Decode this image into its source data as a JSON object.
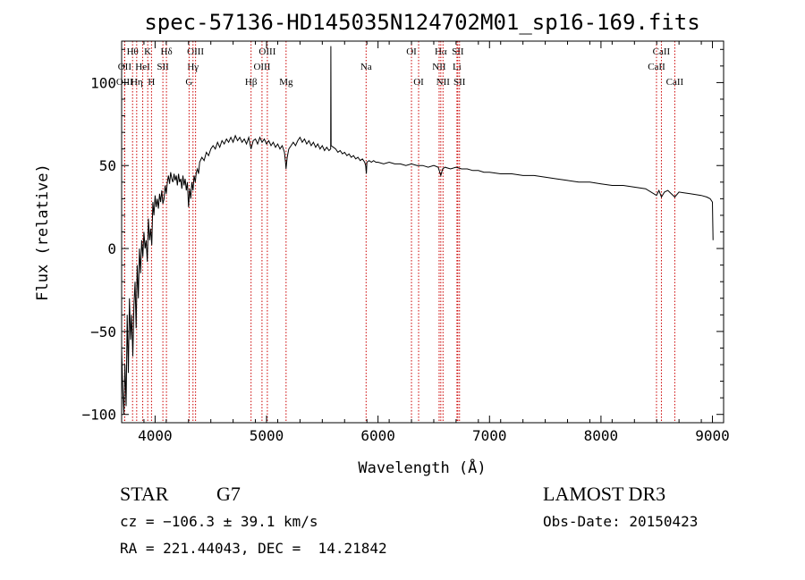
{
  "chart_data": {
    "type": "line",
    "title": "spec-57136-HD145035N124702M01_sp16-169.fits",
    "xlabel": "Wavelength (Å)",
    "ylabel": "Flux (relative)",
    "xlim": [
      3700,
      9100
    ],
    "ylim": [
      -105,
      125
    ],
    "x_ticks": [
      4000,
      5000,
      6000,
      7000,
      8000,
      9000
    ],
    "y_ticks": [
      -100,
      -50,
      0,
      50,
      100
    ],
    "grid": false,
    "series": [
      {
        "points": [
          [
            3700,
            -60
          ],
          [
            3710,
            -85
          ],
          [
            3720,
            -100
          ],
          [
            3730,
            -70
          ],
          [
            3740,
            -95
          ],
          [
            3750,
            -40
          ],
          [
            3760,
            -75
          ],
          [
            3770,
            -30
          ],
          [
            3780,
            -55
          ],
          [
            3790,
            -40
          ],
          [
            3800,
            -65
          ],
          [
            3810,
            -35
          ],
          [
            3820,
            -20
          ],
          [
            3830,
            -48
          ],
          [
            3840,
            -10
          ],
          [
            3850,
            -30
          ],
          [
            3860,
            0
          ],
          [
            3870,
            -15
          ],
          [
            3880,
            5
          ],
          [
            3890,
            -5
          ],
          [
            3900,
            10
          ],
          [
            3910,
            0
          ],
          [
            3920,
            5
          ],
          [
            3930,
            -8
          ],
          [
            3940,
            18
          ],
          [
            3950,
            5
          ],
          [
            3960,
            12
          ],
          [
            3970,
            2
          ],
          [
            3980,
            28
          ],
          [
            3990,
            20
          ],
          [
            4000,
            32
          ],
          [
            4010,
            25
          ],
          [
            4020,
            30
          ],
          [
            4030,
            24
          ],
          [
            4040,
            33
          ],
          [
            4050,
            28
          ],
          [
            4060,
            35
          ],
          [
            4070,
            27
          ],
          [
            4080,
            30
          ],
          [
            4090,
            38
          ],
          [
            4100,
            33
          ],
          [
            4110,
            40
          ],
          [
            4120,
            44
          ],
          [
            4130,
            39
          ],
          [
            4140,
            46
          ],
          [
            4150,
            42
          ],
          [
            4160,
            40
          ],
          [
            4170,
            45
          ],
          [
            4180,
            41
          ],
          [
            4190,
            44
          ],
          [
            4200,
            38
          ],
          [
            4210,
            45
          ],
          [
            4220,
            40
          ],
          [
            4230,
            42
          ],
          [
            4240,
            36
          ],
          [
            4250,
            44
          ],
          [
            4260,
            38
          ],
          [
            4270,
            42
          ],
          [
            4280,
            35
          ],
          [
            4290,
            40
          ],
          [
            4300,
            25
          ],
          [
            4310,
            36
          ],
          [
            4320,
            30
          ],
          [
            4330,
            40
          ],
          [
            4340,
            35
          ],
          [
            4350,
            44
          ],
          [
            4360,
            40
          ],
          [
            4370,
            46
          ],
          [
            4380,
            48
          ],
          [
            4390,
            45
          ],
          [
            4400,
            52
          ],
          [
            4420,
            55
          ],
          [
            4440,
            53
          ],
          [
            4460,
            58
          ],
          [
            4480,
            56
          ],
          [
            4500,
            60
          ],
          [
            4520,
            62
          ],
          [
            4540,
            60
          ],
          [
            4560,
            64
          ],
          [
            4580,
            61
          ],
          [
            4600,
            65
          ],
          [
            4620,
            63
          ],
          [
            4640,
            66
          ],
          [
            4660,
            64
          ],
          [
            4680,
            67
          ],
          [
            4700,
            64
          ],
          [
            4720,
            68
          ],
          [
            4740,
            65
          ],
          [
            4760,
            67
          ],
          [
            4780,
            64
          ],
          [
            4800,
            66
          ],
          [
            4820,
            63
          ],
          [
            4840,
            67
          ],
          [
            4860,
            60
          ],
          [
            4880,
            65
          ],
          [
            4900,
            66
          ],
          [
            4920,
            63
          ],
          [
            4940,
            67
          ],
          [
            4960,
            64
          ],
          [
            4980,
            66
          ],
          [
            5000,
            63
          ],
          [
            5020,
            65
          ],
          [
            5040,
            62
          ],
          [
            5060,
            64
          ],
          [
            5080,
            61
          ],
          [
            5100,
            63
          ],
          [
            5120,
            60
          ],
          [
            5140,
            62
          ],
          [
            5160,
            58
          ],
          [
            5170,
            52
          ],
          [
            5175,
            48
          ],
          [
            5185,
            55
          ],
          [
            5200,
            60
          ],
          [
            5220,
            62
          ],
          [
            5240,
            64
          ],
          [
            5260,
            62
          ],
          [
            5280,
            65
          ],
          [
            5300,
            67
          ],
          [
            5320,
            64
          ],
          [
            5340,
            66
          ],
          [
            5360,
            63
          ],
          [
            5380,
            65
          ],
          [
            5400,
            62
          ],
          [
            5420,
            64
          ],
          [
            5440,
            61
          ],
          [
            5460,
            63
          ],
          [
            5480,
            60
          ],
          [
            5500,
            62
          ],
          [
            5520,
            59
          ],
          [
            5540,
            61
          ],
          [
            5560,
            59
          ],
          [
            5575,
            60
          ],
          [
            5577,
            122
          ],
          [
            5579,
            62
          ],
          [
            5600,
            61
          ],
          [
            5620,
            60
          ],
          [
            5640,
            58
          ],
          [
            5660,
            59
          ],
          [
            5680,
            57
          ],
          [
            5700,
            58
          ],
          [
            5720,
            56
          ],
          [
            5740,
            57
          ],
          [
            5760,
            55
          ],
          [
            5780,
            56
          ],
          [
            5800,
            54
          ],
          [
            5820,
            55
          ],
          [
            5840,
            53
          ],
          [
            5860,
            54
          ],
          [
            5880,
            52
          ],
          [
            5889,
            50
          ],
          [
            5895,
            45
          ],
          [
            5900,
            52
          ],
          [
            5920,
            53
          ],
          [
            5940,
            52
          ],
          [
            5960,
            53
          ],
          [
            5980,
            52
          ],
          [
            6000,
            52
          ],
          [
            6050,
            51
          ],
          [
            6100,
            52
          ],
          [
            6150,
            51
          ],
          [
            6200,
            51
          ],
          [
            6250,
            50
          ],
          [
            6300,
            51
          ],
          [
            6350,
            50
          ],
          [
            6400,
            50
          ],
          [
            6450,
            49
          ],
          [
            6500,
            50
          ],
          [
            6540,
            49
          ],
          [
            6563,
            44
          ],
          [
            6580,
            48
          ],
          [
            6600,
            49
          ],
          [
            6650,
            48
          ],
          [
            6700,
            49
          ],
          [
            6750,
            48
          ],
          [
            6800,
            48
          ],
          [
            6850,
            47
          ],
          [
            6900,
            47
          ],
          [
            6950,
            46
          ],
          [
            7000,
            46
          ],
          [
            7100,
            45
          ],
          [
            7200,
            45
          ],
          [
            7300,
            44
          ],
          [
            7400,
            44
          ],
          [
            7500,
            43
          ],
          [
            7600,
            42
          ],
          [
            7700,
            41
          ],
          [
            7800,
            40
          ],
          [
            7900,
            40
          ],
          [
            8000,
            39
          ],
          [
            8100,
            38
          ],
          [
            8200,
            38
          ],
          [
            8300,
            37
          ],
          [
            8400,
            36
          ],
          [
            8498,
            32
          ],
          [
            8520,
            35
          ],
          [
            8542,
            31
          ],
          [
            8570,
            34
          ],
          [
            8600,
            35
          ],
          [
            8662,
            31
          ],
          [
            8700,
            34
          ],
          [
            8800,
            33
          ],
          [
            8900,
            32
          ],
          [
            8950,
            31
          ],
          [
            8980,
            30
          ],
          [
            9000,
            28
          ],
          [
            9005,
            5
          ]
        ]
      }
    ],
    "lines": [
      {
        "label": "Hθ",
        "x": 3798,
        "row": 0
      },
      {
        "label": "OII",
        "x": 3727,
        "row": 1
      },
      {
        "label": "OIII",
        "x": 3727,
        "row": 2
      },
      {
        "label": "Hη",
        "x": 3835,
        "row": 2
      },
      {
        "label": "HeI",
        "x": 3889,
        "row": 1
      },
      {
        "label": "K",
        "x": 3934,
        "row": 0
      },
      {
        "label": "H",
        "x": 3968,
        "row": 2
      },
      {
        "label": "SII",
        "x": 4070,
        "row": 1
      },
      {
        "label": "Hδ",
        "x": 4102,
        "row": 0
      },
      {
        "label": "OIII",
        "x": 4363,
        "row": 0
      },
      {
        "label": "Hγ",
        "x": 4340,
        "row": 1
      },
      {
        "label": "G",
        "x": 4305,
        "row": 2
      },
      {
        "label": "OIII",
        "x": 5007,
        "row": 0
      },
      {
        "label": "OIII",
        "x": 4959,
        "row": 1
      },
      {
        "label": "Hβ",
        "x": 4861,
        "row": 2
      },
      {
        "label": "Mg",
        "x": 5175,
        "row": 2
      },
      {
        "label": "Na",
        "x": 5893,
        "row": 1
      },
      {
        "label": "OI",
        "x": 6300,
        "row": 0
      },
      {
        "label": "OI",
        "x": 6364,
        "row": 2
      },
      {
        "label": "Hα",
        "x": 6563,
        "row": 0
      },
      {
        "label": "NII",
        "x": 6548,
        "row": 1
      },
      {
        "label": "NII",
        "x": 6583,
        "row": 2
      },
      {
        "label": "SII",
        "x": 6716,
        "row": 0
      },
      {
        "label": "Li",
        "x": 6708,
        "row": 1
      },
      {
        "label": "SII",
        "x": 6731,
        "row": 2
      },
      {
        "label": "CaII",
        "x": 8542,
        "row": 0
      },
      {
        "label": "CaII",
        "x": 8498,
        "row": 1
      },
      {
        "label": "CaII",
        "x": 8662,
        "row": 2
      }
    ],
    "colors": {
      "spectrum": "#000000",
      "line_markers": "#cc0000"
    }
  },
  "info": {
    "object_class": "STAR",
    "subclass": "G7",
    "survey": "LAMOST DR3",
    "cz": "cz = −106.3 ± 39.1 km/s",
    "obs_date": "Obs-Date: 20150423",
    "coords": "RA = 221.44043, DEC =  14.21842"
  }
}
